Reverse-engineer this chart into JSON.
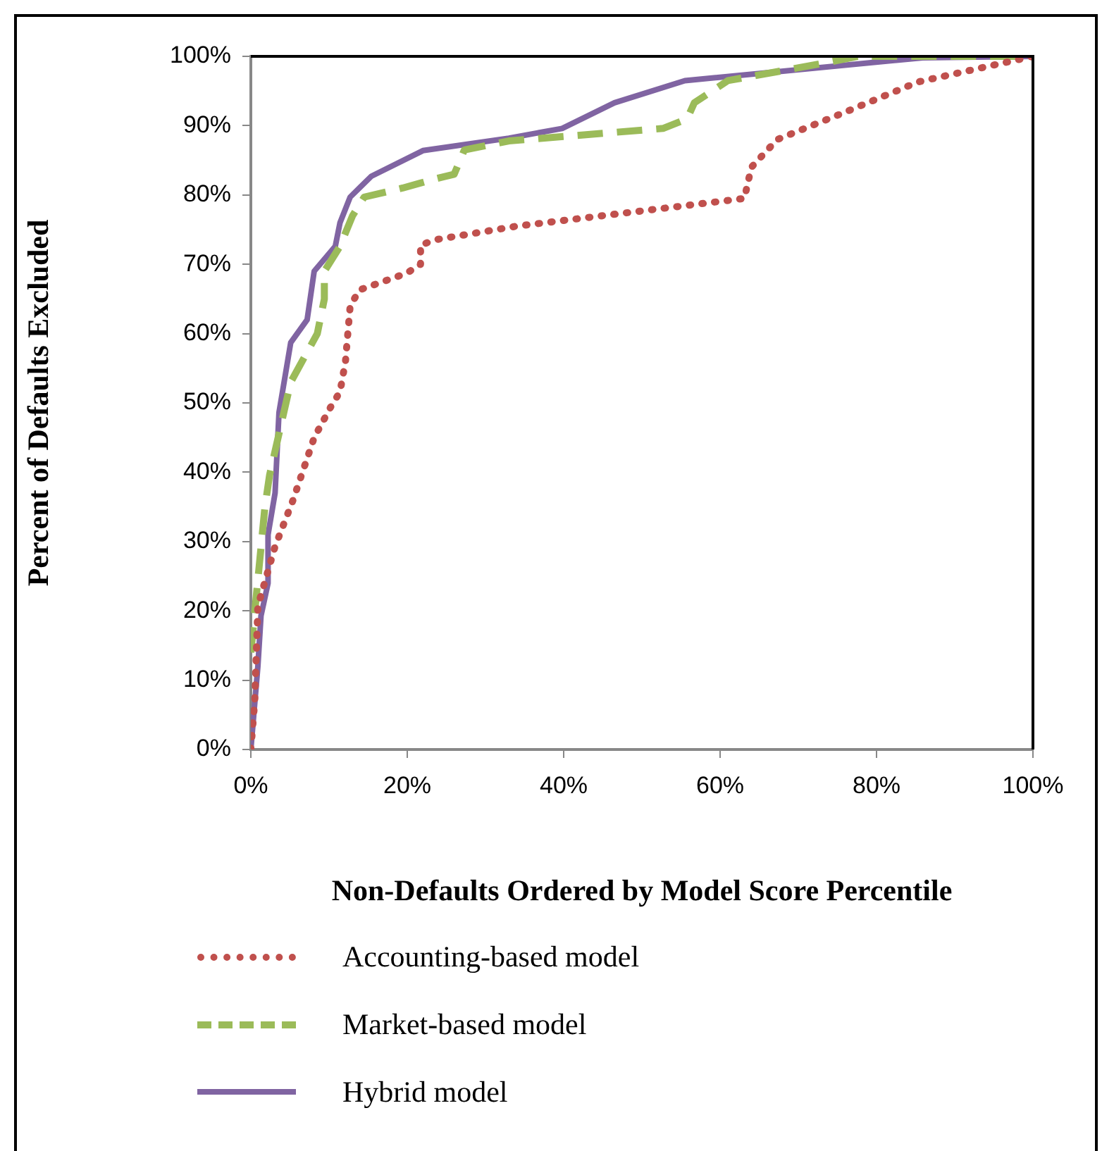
{
  "chart_data": {
    "type": "line",
    "xlabel": "Non-Defaults Ordered by Model Score Percentile",
    "ylabel": "Percent of Defaults Excluded",
    "xlim": [
      0,
      100
    ],
    "xticks": [
      {
        "value": 0,
        "label": "0%"
      },
      {
        "value": 20,
        "label": "20%"
      },
      {
        "value": 40,
        "label": "40%"
      },
      {
        "value": 60,
        "label": "60%"
      },
      {
        "value": 80,
        "label": "80%"
      },
      {
        "value": 100,
        "label": "100%"
      }
    ],
    "ylim": [
      0,
      100
    ],
    "yticks": [
      {
        "value": 0,
        "label": "0%"
      },
      {
        "value": 10,
        "label": "10%"
      },
      {
        "value": 20,
        "label": "20%"
      },
      {
        "value": 30,
        "label": "30%"
      },
      {
        "value": 40,
        "label": "40%"
      },
      {
        "value": 50,
        "label": "50%"
      },
      {
        "value": 60,
        "label": "60%"
      },
      {
        "value": 70,
        "label": "70%"
      },
      {
        "value": 80,
        "label": "80%"
      },
      {
        "value": 90,
        "label": "90%"
      },
      {
        "value": 100,
        "label": "100%"
      }
    ],
    "grid": false,
    "legend": "bottom",
    "marker": "none",
    "series": [
      {
        "name": "Accounting-based model",
        "color": "#c0504d",
        "line_style": "dotted",
        "x": [
          0,
          0.5,
          0.9,
          3.1,
          5.4,
          8.1,
          10.3,
          11.4,
          12.1,
          12.7,
          13.9,
          19.9,
          21.7,
          21.7,
          23.9,
          34,
          63.1,
          64,
          67.3,
          75,
          85.3,
          96,
          100
        ],
        "values": [
          0,
          7,
          20.7,
          29.3,
          36,
          45,
          49.6,
          51.6,
          56,
          64,
          66.3,
          68.7,
          70,
          72.8,
          73.6,
          75.5,
          79.5,
          84,
          88,
          91.5,
          96.3,
          99,
          100
        ]
      },
      {
        "name": "Market-based model",
        "color": "#9bbb59",
        "line_style": "dashed",
        "x": [
          0,
          1.8,
          2.4,
          5.1,
          8.5,
          9.4,
          9.4,
          11.4,
          13,
          14.5,
          19.4,
          23.5,
          26,
          27.3,
          33,
          52.7,
          55.8,
          56.7,
          61,
          72.7,
          77.6,
          100
        ],
        "values": [
          14,
          35,
          39.6,
          53,
          60,
          65,
          69,
          72.6,
          77,
          79.7,
          81,
          82.3,
          83,
          86.5,
          87.8,
          89.6,
          91,
          93.3,
          96.5,
          98.9,
          100,
          100
        ]
      },
      {
        "name": "Hybrid model",
        "color": "#8064a2",
        "line_style": "solid",
        "x": [
          0,
          0.9,
          1.3,
          2.2,
          2.2,
          3.1,
          3.6,
          5.1,
          7.2,
          8.1,
          10.8,
          11.4,
          12.7,
          15.4,
          22,
          33,
          39.8,
          46.5,
          55.5,
          85.9,
          100
        ],
        "values": [
          0,
          12,
          19.3,
          24,
          31,
          37,
          48.6,
          58.7,
          62,
          69,
          72.6,
          76,
          79.7,
          82.7,
          86.4,
          88.2,
          89.6,
          93.3,
          96.5,
          99.8,
          100
        ]
      }
    ]
  }
}
